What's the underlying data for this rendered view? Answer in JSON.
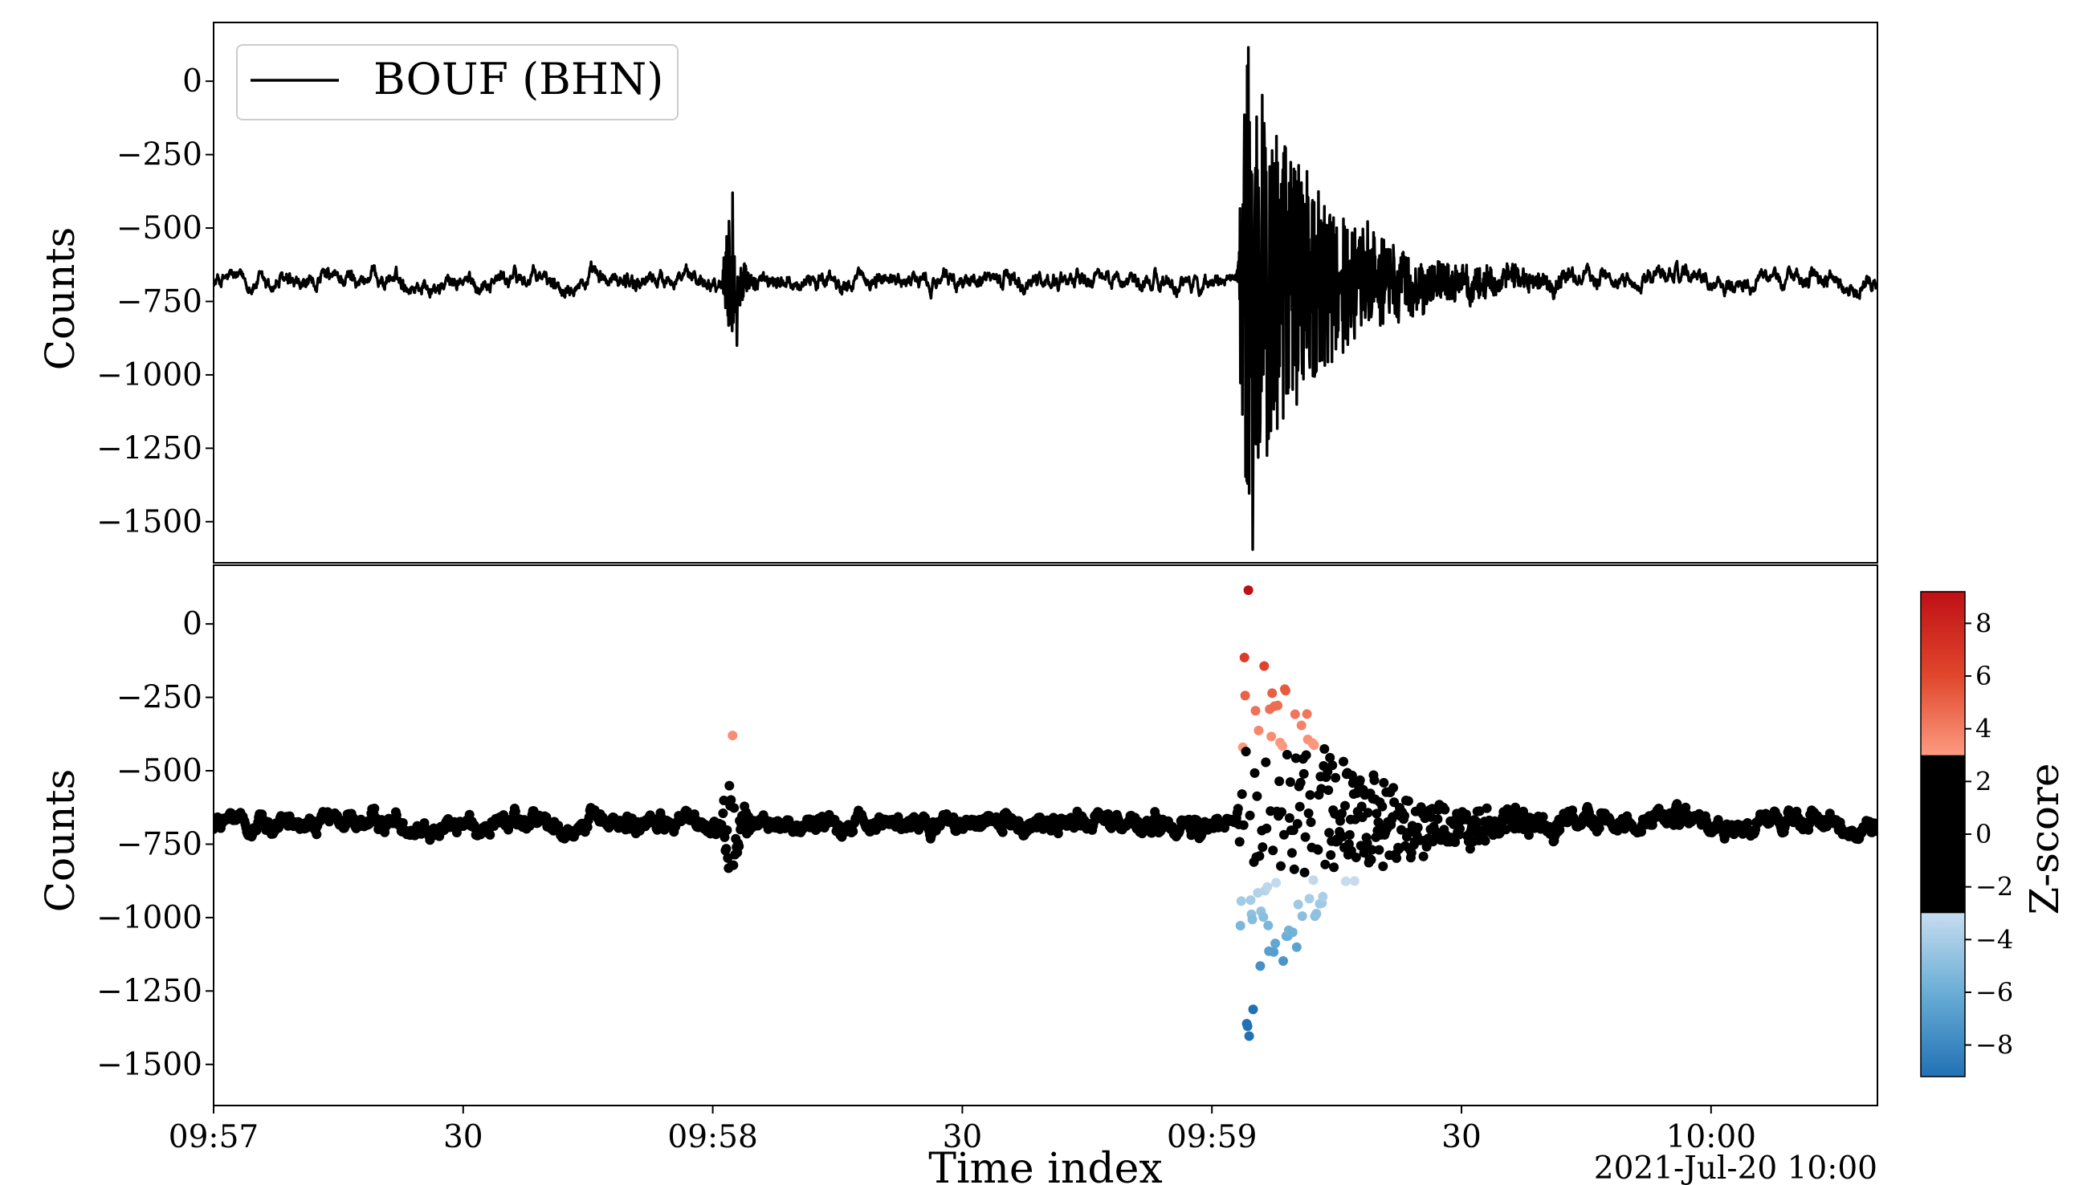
{
  "chart_data": [
    {
      "type": "line",
      "panel": "top",
      "ylabel": "Counts",
      "ylim": [
        -1640,
        200
      ],
      "yticks": [
        0,
        -250,
        -500,
        -750,
        -1000,
        -1250,
        -1500
      ],
      "ytick_labels": [
        "0",
        "−250",
        "−500",
        "−750",
        "−1000",
        "−1250",
        "−1500"
      ],
      "legend": {
        "label": "BOUF (BHN)",
        "placement": "top-left"
      },
      "color": "#000000",
      "series": [
        {
          "name": "BOUF (BHN)",
          "baseline": -680,
          "noise_amplitude": 35,
          "events": [
            {
              "center_s": 62,
              "duration_s": 2,
              "min": -900,
              "max": -380
            },
            {
              "center_s": 124,
              "duration_s": 18,
              "min": -1595,
              "max": 115
            }
          ],
          "x": [
            0,
            10,
            20,
            30,
            40,
            50,
            60,
            61,
            62,
            63,
            64,
            70,
            80,
            90,
            100,
            110,
            120,
            122,
            124,
            125,
            126,
            128,
            130,
            134,
            140,
            150,
            160,
            170,
            180,
            200
          ],
          "y": [
            -680,
            -690,
            -675,
            -685,
            -670,
            -690,
            -680,
            -520,
            -380,
            -900,
            -700,
            -685,
            -675,
            -690,
            -680,
            -685,
            -690,
            -400,
            115,
            -1595,
            -200,
            -1270,
            -450,
            -600,
            -690,
            -680,
            -685,
            -675,
            -685,
            -680
          ]
        }
      ]
    },
    {
      "type": "scatter",
      "panel": "bottom",
      "xlabel": "Time index",
      "ylabel": "Counts",
      "ylim": [
        -1640,
        200
      ],
      "yticks": [
        0,
        -250,
        -500,
        -750,
        -1000,
        -1250,
        -1500
      ],
      "ytick_labels": [
        "0",
        "−250",
        "−500",
        "−750",
        "−1000",
        "−1250",
        "−1500"
      ],
      "xlim_seconds_from_09_57_00": [
        0,
        200
      ],
      "xticks_seconds": [
        0,
        30,
        60,
        90,
        120,
        150,
        180
      ],
      "xtick_labels": [
        "09:57",
        "30",
        "09:58",
        "30",
        "09:59",
        "30",
        "10:00"
      ],
      "date_label": "2021-Jul-20 10:00",
      "colorbar": {
        "label": "Z-score",
        "range": [
          -9.2,
          9.2
        ],
        "ticks": [
          8,
          6,
          4,
          2,
          0,
          -2,
          -4,
          -6,
          -8
        ],
        "tick_labels": [
          "8",
          "6",
          "4",
          "2",
          "0",
          "−2",
          "−4",
          "−6",
          "−8"
        ],
        "stops": [
          {
            "z": 9.2,
            "color": "#c01016"
          },
          {
            "z": 6,
            "color": "#e0472c"
          },
          {
            "z": 3,
            "color": "#fc9a80"
          },
          {
            "z": 2.99,
            "color": "#000000"
          },
          {
            "z": -2.99,
            "color": "#000000"
          },
          {
            "z": -3,
            "color": "#c7dcef"
          },
          {
            "z": -6,
            "color": "#6aaed6"
          },
          {
            "z": -9.2,
            "color": "#2171b5"
          }
        ]
      },
      "points": {
        "baseline": -680,
        "normal_band": [
          -750,
          -600
        ],
        "events": [
          {
            "center_s": 62,
            "min": -910,
            "max": -380
          },
          {
            "center_s": 124,
            "min": -1620,
            "max": 125
          }
        ]
      }
    }
  ]
}
